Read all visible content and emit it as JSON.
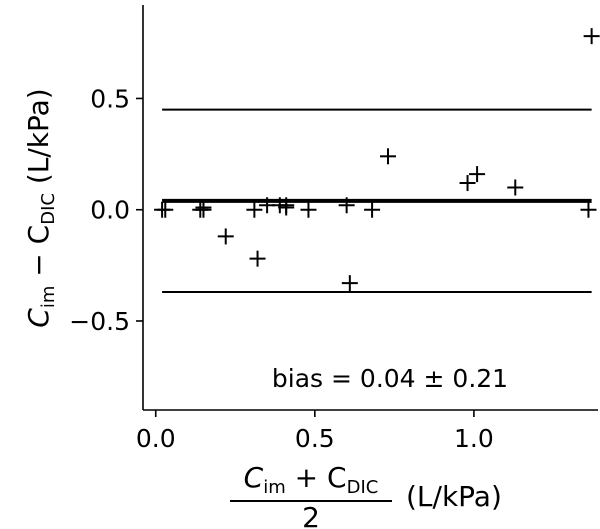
{
  "chart_data": {
    "type": "scatter",
    "ylabel": {
      "main": "C",
      "sub1": "im",
      "mid": " − C",
      "sub2": "DIC",
      "unit": " (L/kPa)"
    },
    "xlabel": {
      "num_main": "C",
      "num_sub1": "im",
      "num_mid": " + C",
      "num_sub2": "DIC",
      "den": "2",
      "unit": "(L/kPa)"
    },
    "xlim": [
      -0.04,
      1.39
    ],
    "ylim": [
      -0.9,
      0.92
    ],
    "x_ticks": [
      0.0,
      0.5,
      1.0
    ],
    "x_tick_labels": [
      "0.0",
      "0.5",
      "1.0"
    ],
    "y_ticks": [
      -0.5,
      0.0,
      0.5
    ],
    "y_tick_labels": [
      "−0.5",
      "0.0",
      "0.5"
    ],
    "grid": false,
    "annotation": "bias = 0.04 ± 0.21",
    "bias": 0.04,
    "upper_limit": 0.45,
    "lower_limit": -0.37,
    "line_x_range": [
      0.02,
      1.37
    ],
    "points": [
      {
        "x": 0.02,
        "y": 0.0
      },
      {
        "x": 0.03,
        "y": 0.0
      },
      {
        "x": 0.14,
        "y": 0.0
      },
      {
        "x": 0.15,
        "y": 0.0
      },
      {
        "x": 0.15,
        "y": 0.01
      },
      {
        "x": 0.22,
        "y": -0.12
      },
      {
        "x": 0.31,
        "y": 0.0
      },
      {
        "x": 0.32,
        "y": -0.22
      },
      {
        "x": 0.35,
        "y": 0.02
      },
      {
        "x": 0.39,
        "y": 0.02
      },
      {
        "x": 0.41,
        "y": 0.02
      },
      {
        "x": 0.41,
        "y": 0.01
      },
      {
        "x": 0.48,
        "y": 0.0
      },
      {
        "x": 0.6,
        "y": 0.02
      },
      {
        "x": 0.61,
        "y": -0.33
      },
      {
        "x": 0.68,
        "y": 0.0
      },
      {
        "x": 0.73,
        "y": 0.24
      },
      {
        "x": 0.98,
        "y": 0.12
      },
      {
        "x": 1.01,
        "y": 0.16
      },
      {
        "x": 1.13,
        "y": 0.1
      },
      {
        "x": 1.36,
        "y": 0.0
      },
      {
        "x": 1.37,
        "y": 0.78
      }
    ]
  }
}
